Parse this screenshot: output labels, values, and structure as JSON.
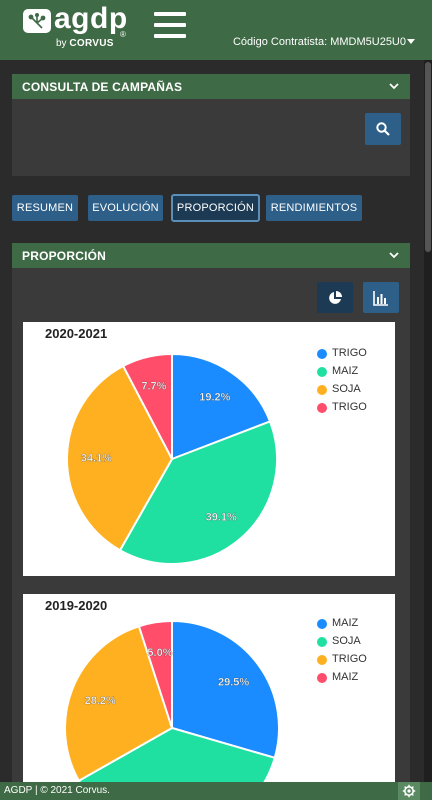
{
  "header": {
    "logo_text": "agdp",
    "logo_sub_prefix": "by",
    "logo_sub_brand": "CORVUS",
    "logo_reg": "®",
    "contract_label": "Código Contratista: MMDM5U25U0",
    "brand_color": "#3e6a45"
  },
  "consulta": {
    "title": "CONSULTA DE CAMPAÑAS",
    "search_icon": "search-icon"
  },
  "tabs": [
    {
      "label": "RESUMEN",
      "active": false
    },
    {
      "label": "EVOLUCIÓN",
      "active": false
    },
    {
      "label": "PROPORCIÓN",
      "active": true
    },
    {
      "label": "RENDIMIENTOS",
      "active": false
    }
  ],
  "proporcion": {
    "title": "PROPORCIÓN",
    "pie_button_icon": "pie-chart-icon",
    "bar_button_icon": "bar-chart-icon"
  },
  "chart_data": [
    {
      "type": "pie",
      "title": "2020-2021",
      "categories": [
        "TRIGO",
        "MAIZ",
        "SOJA",
        "TRIGO"
      ],
      "values": [
        19.2,
        39.1,
        34.1,
        7.7
      ],
      "labels": [
        "19.2%",
        "39.1%",
        "34.1%",
        "7.7%"
      ],
      "colors": [
        "#1a8cff",
        "#1fe0a0",
        "#ffb020",
        "#ff4d6a"
      ],
      "legend": "top-right"
    },
    {
      "type": "pie",
      "title": "2019-2020",
      "categories": [
        "MAIZ",
        "SOJA",
        "TRIGO",
        "MAIZ"
      ],
      "values": [
        29.5,
        37.3,
        28.2,
        5.0
      ],
      "labels": [
        "29.5%",
        "",
        "28.2%",
        "5.0%"
      ],
      "colors": [
        "#1a8cff",
        "#1fe0a0",
        "#ffb020",
        "#ff4d6a"
      ],
      "legend": "top-right"
    }
  ],
  "footer": {
    "text": "AGDP | © 2021 Corvus.",
    "settings_icon": "gear-icon"
  }
}
